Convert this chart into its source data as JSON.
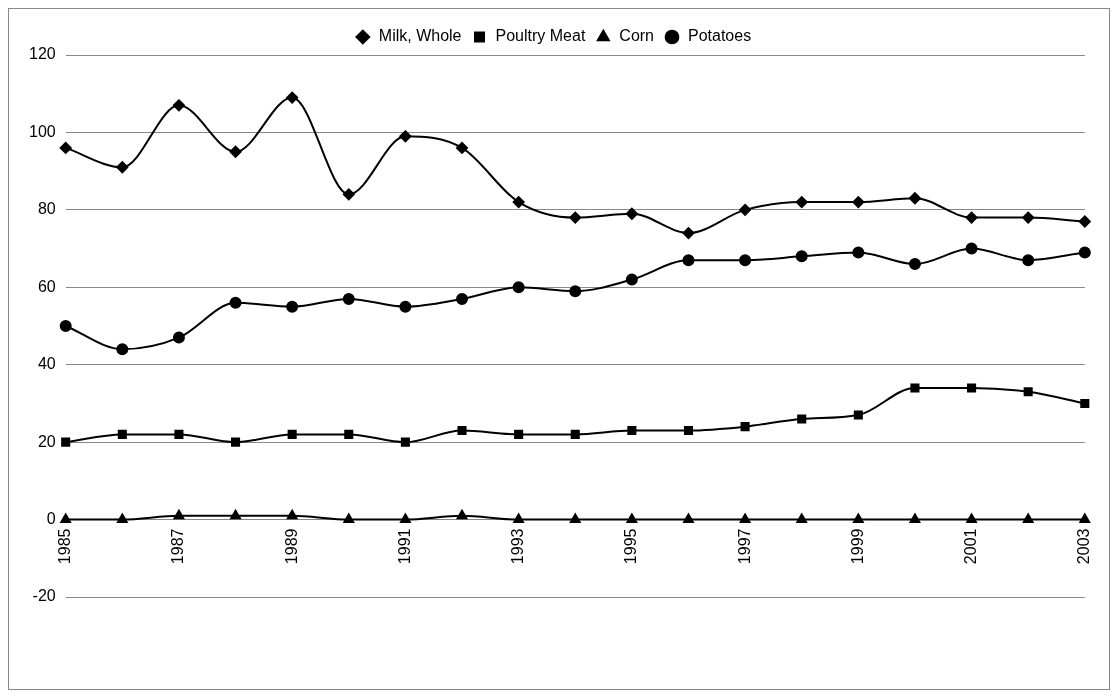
{
  "chart_data": {
    "type": "line",
    "categories": [
      "1985",
      null,
      "1987",
      null,
      "1989",
      null,
      "1991",
      null,
      "1993",
      null,
      "1995",
      null,
      "1997",
      null,
      "1999",
      null,
      "2001",
      null,
      "2003"
    ],
    "series": [
      {
        "name": "Milk, Whole",
        "color": "#000000",
        "marker": "diamond",
        "values": [
          96,
          91,
          107,
          95,
          109,
          84,
          99,
          96,
          82,
          78,
          79,
          74,
          80,
          82,
          82,
          83,
          78,
          78,
          77
        ]
      },
      {
        "name": "Poultry Meat",
        "color": "#000000",
        "marker": "square",
        "values": [
          20,
          22,
          22,
          20,
          22,
          22,
          20,
          23,
          22,
          22,
          23,
          23,
          24,
          26,
          27,
          34,
          34,
          33,
          30
        ]
      },
      {
        "name": "Corn",
        "color": "#000000",
        "marker": "triangle",
        "values": [
          0,
          0,
          1,
          1,
          1,
          0,
          0,
          1,
          0,
          0,
          0,
          0,
          0,
          0,
          0,
          0,
          0,
          0,
          0
        ]
      },
      {
        "name": "Potatoes",
        "color": "#000000",
        "marker": "circle",
        "values": [
          50,
          44,
          47,
          56,
          55,
          57,
          55,
          57,
          60,
          59,
          62,
          67,
          67,
          68,
          69,
          66,
          70,
          67,
          69
        ]
      }
    ],
    "ylim": [
      -20,
      120
    ],
    "yticks": [
      -20,
      0,
      20,
      40,
      60,
      80,
      100,
      120
    ],
    "grid": "y",
    "legend": "top",
    "line_style": "solid"
  }
}
